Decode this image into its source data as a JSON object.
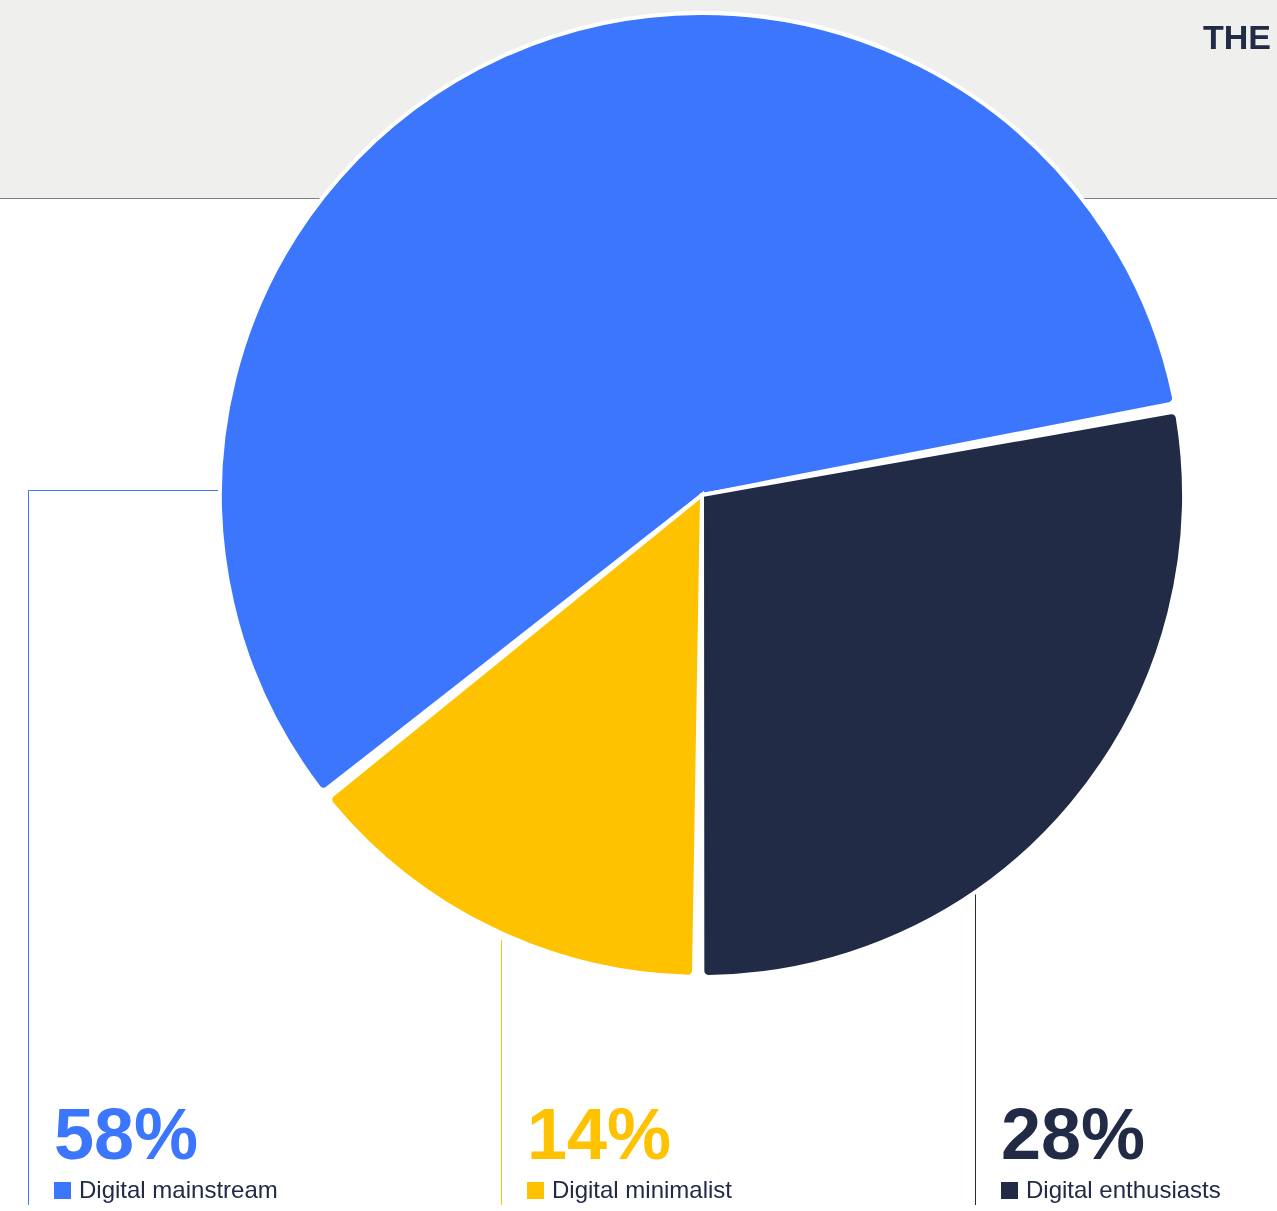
{
  "chart_data": {
    "type": "pie",
    "categories": [
      "Digital mainstream",
      "Digital minimalist",
      "Digital enthusiasts"
    ],
    "values": [
      58,
      14,
      28
    ],
    "colors": [
      "#3b76fd",
      "#fec200",
      "#212b46"
    ],
    "value_labels": [
      "58%",
      "14%",
      "28%"
    ],
    "legend": "bottom",
    "annotations": [
      "THE"
    ]
  }
}
